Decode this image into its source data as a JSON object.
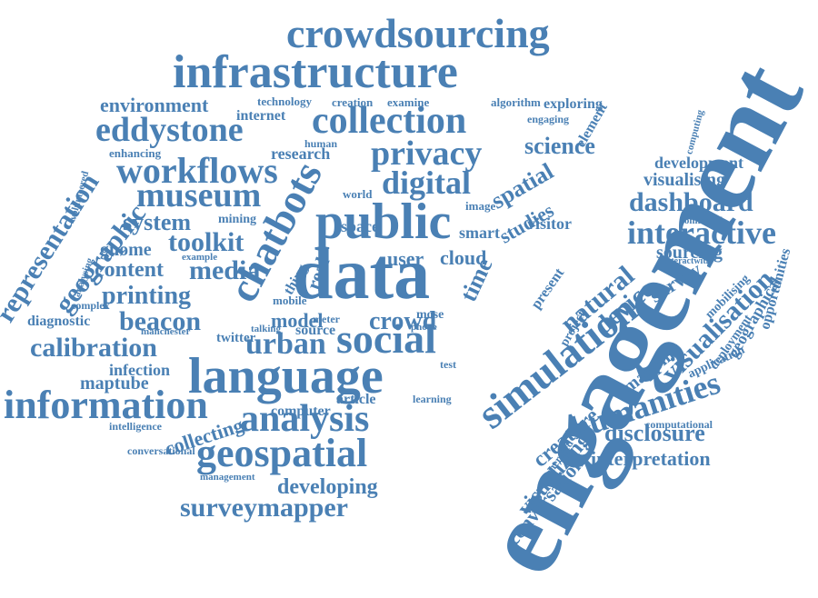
{
  "colors": {
    "background": "#ffffff",
    "word": "#4a80b4"
  },
  "words": [
    "engagement",
    "data",
    "public",
    "language",
    "infrastructure",
    "crowdsourcing",
    "simulation",
    "social",
    "chatbots",
    "collection",
    "information",
    "analysis",
    "geospatial",
    "humanities",
    "workflows",
    "museum",
    "eddystone",
    "privacy",
    "interactive",
    "digital",
    "urban",
    "surveymapper",
    "calibration",
    "toolkit",
    "representation",
    "geographic",
    "visualisation",
    "dashboard",
    "beacon",
    "printing",
    "system",
    "content",
    "media",
    "disclosure",
    "interpretation",
    "crowd",
    "spatial",
    "natural",
    "device",
    "environment",
    "science",
    "time",
    "conversation",
    "developing",
    "collecting",
    "creature",
    "visualizing",
    "development",
    "visualising",
    "sourcing",
    "survey",
    "model",
    "cloud",
    "user",
    "studies",
    "mapping",
    "maptube",
    "infection",
    "diagnostic",
    "gnome",
    "research",
    "internet",
    "source",
    "computer",
    "article",
    "element",
    "opportunities",
    "geographical",
    "deployment",
    "mobilising",
    "application",
    "computational",
    "conversational",
    "intelligence",
    "management",
    "twitter",
    "complex",
    "manchester",
    "mining",
    "space",
    "smart",
    "visitor",
    "technology",
    "creation",
    "examine",
    "algorithm",
    "exploring",
    "engaging",
    "enhancing",
    "human",
    "volunteered",
    "analysing",
    "example",
    "connected",
    "interactwith",
    "generated",
    "project",
    "present",
    "mose",
    "meter",
    "mobile",
    "talking",
    "real",
    "thing",
    "test",
    "learning",
    "phone",
    "world",
    "image",
    "computing"
  ]
}
